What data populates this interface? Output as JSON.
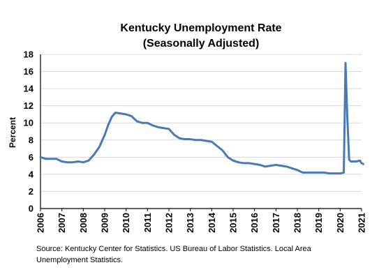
{
  "chart_data": {
    "type": "line",
    "title": "Kentucky Unemployment Rate",
    "subtitle": "(Seasonally Adjusted)",
    "ylabel": "Percent",
    "xlabel": "",
    "ylim": [
      0,
      18
    ],
    "yticks": [
      0,
      2,
      4,
      6,
      8,
      10,
      12,
      14,
      16,
      18
    ],
    "xlim": [
      2006,
      2021
    ],
    "xticks": [
      "2006",
      "2007",
      "2008",
      "2009",
      "2010",
      "2011",
      "2012",
      "2013",
      "2014",
      "2015",
      "2016",
      "2017",
      "2018",
      "2019",
      "2020",
      "2021"
    ],
    "grid": "horizontal",
    "legend": "none",
    "line_color": "#4a7ab5",
    "series": [
      {
        "x": [
          2006.0,
          2006.25,
          2006.5,
          2006.75,
          2007.0,
          2007.25,
          2007.5,
          2007.75,
          2008.0,
          2008.25,
          2008.5,
          2008.75,
          2009.0,
          2009.17,
          2009.33,
          2009.5,
          2009.75,
          2010.0,
          2010.25,
          2010.5,
          2010.75,
          2011.0,
          2011.25,
          2011.5,
          2011.75,
          2012.0,
          2012.25,
          2012.5,
          2012.75,
          2013.0,
          2013.25,
          2013.5,
          2013.75,
          2014.0,
          2014.25,
          2014.5,
          2014.75,
          2015.0,
          2015.25,
          2015.5,
          2015.75,
          2016.0,
          2016.25,
          2016.5,
          2016.75,
          2017.0,
          2017.25,
          2017.5,
          2017.75,
          2018.0,
          2018.25,
          2018.5,
          2018.75,
          2019.0,
          2019.25,
          2019.5,
          2019.75,
          2020.0,
          2020.17,
          2020.25,
          2020.33,
          2020.42,
          2020.5,
          2020.75,
          2020.92,
          2021.0,
          2021.08
        ],
        "values": [
          6.0,
          5.8,
          5.8,
          5.8,
          5.5,
          5.4,
          5.4,
          5.5,
          5.4,
          5.6,
          6.3,
          7.2,
          8.6,
          9.8,
          10.7,
          11.2,
          11.1,
          11.0,
          10.8,
          10.2,
          10.0,
          10.0,
          9.7,
          9.5,
          9.4,
          9.3,
          8.6,
          8.2,
          8.1,
          8.1,
          8.0,
          8.0,
          7.9,
          7.8,
          7.3,
          6.8,
          6.0,
          5.6,
          5.4,
          5.3,
          5.3,
          5.2,
          5.1,
          4.9,
          5.0,
          5.1,
          5.0,
          4.9,
          4.7,
          4.5,
          4.2,
          4.2,
          4.2,
          4.2,
          4.2,
          4.1,
          4.1,
          4.1,
          4.2,
          17.0,
          10.9,
          5.7,
          5.5,
          5.5,
          5.6,
          5.3,
          5.2
        ]
      }
    ]
  },
  "source_note": "Source: Kentucky Center for Statistics. US Bureau of Labor Statistics. Local Area Unemployment Statistics."
}
